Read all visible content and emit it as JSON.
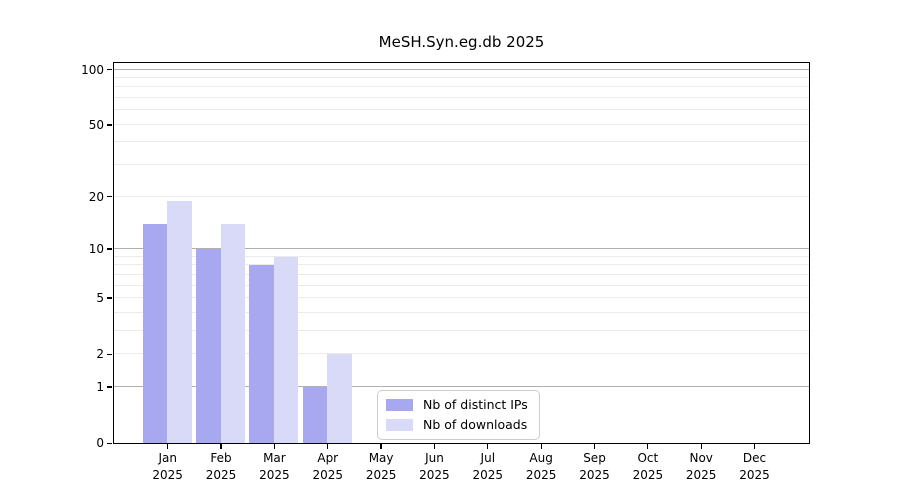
{
  "figure": {
    "title": "MeSH.Syn.eg.db 2025"
  },
  "chart_data": {
    "type": "bar",
    "title": "MeSH.Syn.eg.db 2025",
    "categories": [
      {
        "month": "Jan",
        "year": "2025"
      },
      {
        "month": "Feb",
        "year": "2025"
      },
      {
        "month": "Mar",
        "year": "2025"
      },
      {
        "month": "Apr",
        "year": "2025"
      },
      {
        "month": "May",
        "year": "2025"
      },
      {
        "month": "Jun",
        "year": "2025"
      },
      {
        "month": "Jul",
        "year": "2025"
      },
      {
        "month": "Aug",
        "year": "2025"
      },
      {
        "month": "Sep",
        "year": "2025"
      },
      {
        "month": "Oct",
        "year": "2025"
      },
      {
        "month": "Nov",
        "year": "2025"
      },
      {
        "month": "Dec",
        "year": "2025"
      }
    ],
    "series": [
      {
        "name": "Nb of distinct IPs",
        "color": "#a8a8f0",
        "values": [
          14,
          10,
          8,
          1,
          0,
          0,
          0,
          0,
          0,
          0,
          0,
          0
        ]
      },
      {
        "name": "Nb of downloads",
        "color": "#d9d9f8",
        "values": [
          19,
          14,
          9,
          2,
          0,
          0,
          0,
          0,
          0,
          0,
          0,
          0
        ]
      }
    ],
    "y_axis": {
      "scale": "log1p",
      "ticks": [
        0,
        1,
        2,
        5,
        10,
        20,
        50,
        100
      ],
      "major_gridlines": [
        1,
        10,
        100
      ],
      "minor_gridlines": [
        2,
        3,
        4,
        5,
        6,
        7,
        8,
        9,
        20,
        30,
        40,
        50,
        60,
        70,
        80,
        90
      ],
      "range": [
        0,
        110
      ]
    },
    "legend": {
      "position": "inside-bottom-center"
    }
  }
}
